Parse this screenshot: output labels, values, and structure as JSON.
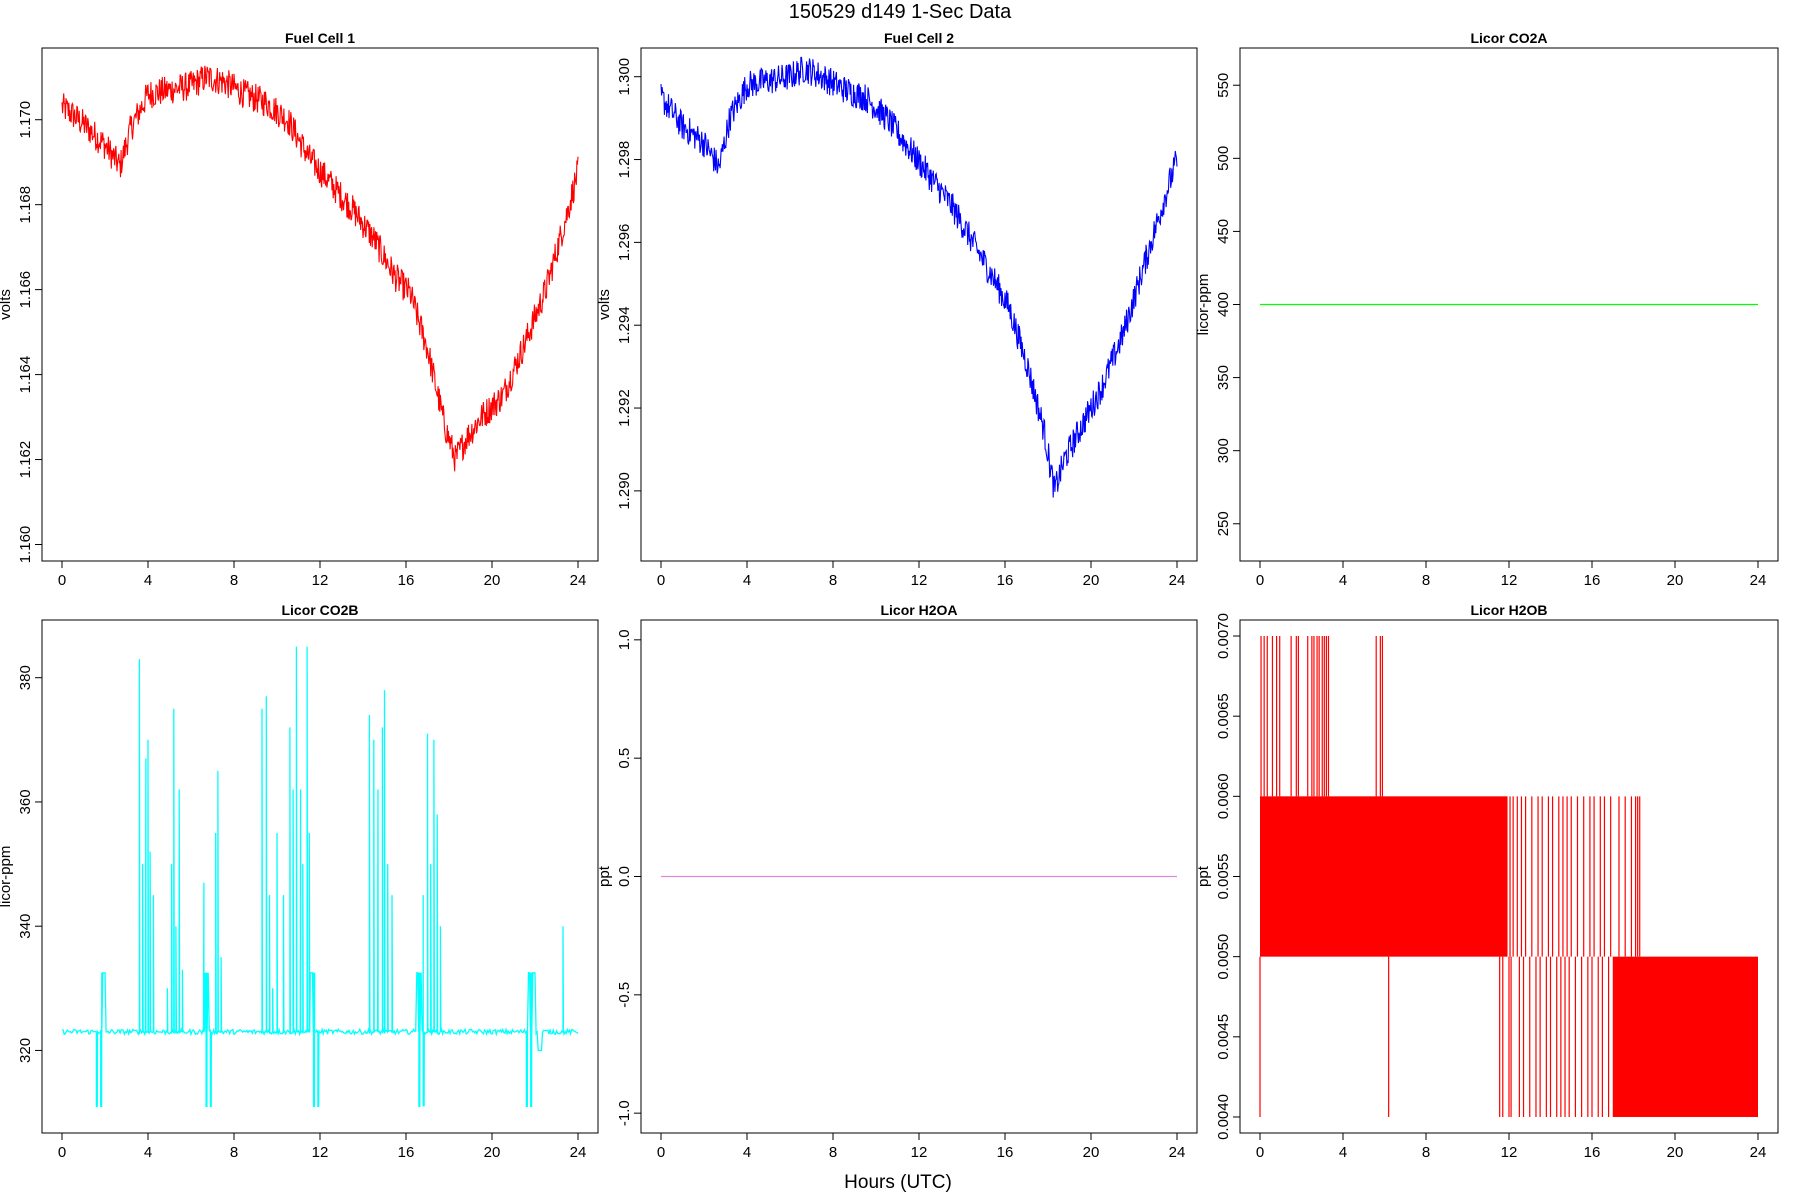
{
  "figure": {
    "title": "150529   d149   1-Sec Data",
    "xlabel": "Hours (UTC)"
  },
  "chart_data": [
    {
      "type": "line",
      "title": "Fuel Cell 1",
      "ylabel": "volts",
      "color": "#ff0000",
      "xlim": [
        0,
        24
      ],
      "ylim": [
        1.1598,
        1.1715
      ],
      "xticks": [
        0,
        4,
        8,
        12,
        16,
        20,
        24
      ],
      "yticks": [
        1.16,
        1.162,
        1.164,
        1.166,
        1.168,
        1.17
      ],
      "ytick_labels": [
        "1.160",
        "1.162",
        "1.164",
        "1.166",
        "1.168",
        "1.170"
      ],
      "noise": 0.00035,
      "x": [
        0,
        0.3,
        1.0,
        2.0,
        2.7,
        3.2,
        4.0,
        5.0,
        6.0,
        6.7,
        7.5,
        8.5,
        9.5,
        10.5,
        11.5,
        12.5,
        13.5,
        14.5,
        15.5,
        16.2,
        17.0,
        17.8,
        18.3,
        18.8,
        19.5,
        20.5,
        21.5,
        22.5,
        23.5,
        24.0
      ],
      "y": [
        1.1703,
        1.1702,
        1.1699,
        1.1694,
        1.1689,
        1.1698,
        1.1706,
        1.1707,
        1.1708,
        1.171,
        1.1709,
        1.1706,
        1.1704,
        1.17,
        1.1691,
        1.1685,
        1.1679,
        1.1672,
        1.1663,
        1.1659,
        1.1646,
        1.1628,
        1.162,
        1.1625,
        1.163,
        1.1635,
        1.1647,
        1.166,
        1.1678,
        1.1688
      ]
    },
    {
      "type": "line",
      "title": "Fuel Cell 2",
      "ylabel": "volts",
      "color": "#0000ff",
      "xlim": [
        0,
        24
      ],
      "ylim": [
        1.2885,
        1.3005
      ],
      "xticks": [
        0,
        4,
        8,
        12,
        16,
        20,
        24
      ],
      "yticks": [
        1.29,
        1.292,
        1.294,
        1.296,
        1.298,
        1.3
      ],
      "ytick_labels": [
        "1.290",
        "1.292",
        "1.294",
        "1.296",
        "1.298",
        "1.300"
      ],
      "noise": 0.00035,
      "x": [
        0,
        0.3,
        1.0,
        2.0,
        2.7,
        3.2,
        4.0,
        5.0,
        6.0,
        6.7,
        7.5,
        8.5,
        9.5,
        10.5,
        11.5,
        12.5,
        13.5,
        14.5,
        15.5,
        16.2,
        17.0,
        17.8,
        18.3,
        18.8,
        19.5,
        20.5,
        21.5,
        22.5,
        23.5,
        24.0
      ],
      "y": [
        1.2995,
        1.2993,
        1.2988,
        1.2984,
        1.2978,
        1.299,
        1.2998,
        1.2999,
        1.3,
        1.3002,
        1.3,
        1.2997,
        1.2995,
        1.299,
        1.2983,
        1.2976,
        1.2969,
        1.296,
        1.2951,
        1.2944,
        1.2931,
        1.2915,
        1.29,
        1.2908,
        1.2915,
        1.2925,
        1.2938,
        1.2955,
        1.2972,
        1.298
      ]
    },
    {
      "type": "line",
      "title": "Licor CO2A",
      "ylabel": "licor-ppm",
      "color": "#00ff00",
      "xlim": [
        0,
        24
      ],
      "ylim": [
        230,
        570
      ],
      "xticks": [
        0,
        4,
        8,
        12,
        16,
        20,
        24
      ],
      "yticks": [
        250,
        300,
        350,
        400,
        450,
        500,
        550
      ],
      "ytick_labels": [
        "250",
        "300",
        "350",
        "400",
        "450",
        "500",
        "550"
      ],
      "noise": 0,
      "x": [
        0,
        24
      ],
      "y": [
        400,
        400
      ]
    },
    {
      "type": "line",
      "title": "Licor CO2B",
      "ylabel": "licor-ppm",
      "color": "#00ffff",
      "xlim": [
        0,
        24
      ],
      "ylim": [
        308,
        388
      ],
      "xticks": [
        0,
        4,
        8,
        12,
        16,
        20,
        24
      ],
      "yticks": [
        320,
        340,
        360,
        380
      ],
      "ytick_labels": [
        "320",
        "340",
        "360",
        "380"
      ],
      "noise": 0,
      "baseline": 323,
      "spikes": [
        [
          3.6,
          383
        ],
        [
          3.75,
          350
        ],
        [
          3.9,
          367
        ],
        [
          4.0,
          370
        ],
        [
          4.1,
          352
        ],
        [
          4.25,
          345
        ],
        [
          4.9,
          330
        ],
        [
          5.1,
          350
        ],
        [
          5.2,
          375
        ],
        [
          5.3,
          340
        ],
        [
          5.45,
          362
        ],
        [
          5.6,
          333
        ],
        [
          6.6,
          347
        ],
        [
          7.15,
          355
        ],
        [
          7.25,
          365
        ],
        [
          7.4,
          335
        ],
        [
          9.3,
          375
        ],
        [
          9.5,
          377
        ],
        [
          9.65,
          345
        ],
        [
          9.8,
          330
        ],
        [
          10.0,
          355
        ],
        [
          10.3,
          345
        ],
        [
          10.6,
          372
        ],
        [
          10.75,
          362
        ],
        [
          10.9,
          385
        ],
        [
          11.1,
          362
        ],
        [
          11.2,
          350
        ],
        [
          11.4,
          385
        ],
        [
          11.5,
          355
        ],
        [
          14.3,
          374
        ],
        [
          14.5,
          370
        ],
        [
          14.7,
          362
        ],
        [
          14.9,
          372
        ],
        [
          15.0,
          378
        ],
        [
          15.15,
          350
        ],
        [
          15.35,
          345
        ],
        [
          16.8,
          345
        ],
        [
          17.0,
          371
        ],
        [
          17.15,
          350
        ],
        [
          17.3,
          370
        ],
        [
          17.45,
          358
        ],
        [
          17.6,
          340
        ],
        [
          23.3,
          340
        ]
      ],
      "dips": [
        [
          1.6,
          311
        ],
        [
          1.8,
          311
        ],
        [
          6.7,
          311
        ],
        [
          6.9,
          311
        ],
        [
          11.7,
          311
        ],
        [
          11.9,
          311
        ],
        [
          16.6,
          311
        ],
        [
          16.8,
          311
        ],
        [
          21.6,
          311
        ],
        [
          21.8,
          311
        ]
      ],
      "plateaus": [
        [
          1.8,
          2.0,
          332.5
        ],
        [
          6.6,
          6.8,
          332.5
        ],
        [
          11.55,
          11.75,
          332.5
        ],
        [
          16.5,
          16.7,
          332.5
        ],
        [
          21.7,
          22.0,
          332.5
        ],
        [
          22.1,
          22.3,
          320
        ]
      ]
    },
    {
      "type": "line",
      "title": "Licor H2OA",
      "ylabel": "ppt",
      "color": "#dd88dd",
      "xlim": [
        0,
        24
      ],
      "ylim": [
        -1.05,
        1.05
      ],
      "xticks": [
        0,
        4,
        8,
        12,
        16,
        20,
        24
      ],
      "yticks": [
        -1.0,
        -0.5,
        0.0,
        0.5,
        1.0
      ],
      "ytick_labels": [
        "-1.0",
        "-0.5",
        "0.0",
        "0.5",
        "1.0"
      ],
      "noise": 0,
      "x": [
        0,
        24
      ],
      "y": [
        0,
        0
      ]
    },
    {
      "type": "line",
      "title": "Licor H2OB",
      "ylabel": "ppt",
      "color": "#ff0000",
      "xlim": [
        0,
        24
      ],
      "ylim": [
        0.00395,
        0.00705
      ],
      "xticks": [
        0,
        4,
        8,
        12,
        16,
        20,
        24
      ],
      "yticks": [
        0.004,
        0.0045,
        0.005,
        0.0055,
        0.006,
        0.0065,
        0.007
      ],
      "ytick_labels": [
        "0.0040",
        "0.0045",
        "0.0050",
        "0.0055",
        "0.0060",
        "0.0065",
        "0.0070"
      ],
      "noise": 0,
      "bands": [
        {
          "x0": 0,
          "x1": 11.9,
          "y0": 0.005,
          "y1": 0.006
        },
        {
          "x0": 17.0,
          "x1": 24.0,
          "y0": 0.004,
          "y1": 0.005
        }
      ],
      "spikes_up": [
        0.05,
        0.2,
        0.35,
        0.6,
        0.8,
        0.95,
        1.5,
        1.75,
        1.85,
        2.3,
        2.5,
        2.6,
        2.75,
        2.85,
        3.0,
        3.1,
        3.2,
        3.3,
        5.6,
        5.8,
        5.9
      ],
      "spikes_down": [
        0.0,
        6.2,
        11.55,
        11.7,
        12.0,
        12.1,
        12.5,
        12.7,
        13.0,
        13.3,
        13.5,
        13.8,
        14.0,
        14.3,
        14.5,
        14.7,
        14.9,
        15.2,
        15.5,
        15.8,
        16.0,
        16.3,
        16.5,
        16.8
      ],
      "spikes_mid": [
        11.9,
        12.05,
        12.2,
        12.4,
        12.6,
        12.8,
        13.1,
        13.4,
        13.6,
        13.9,
        14.1,
        14.4,
        14.6,
        14.8,
        15.0,
        15.3,
        15.6,
        15.9,
        16.1,
        16.4,
        16.6,
        16.9,
        18.1
      ],
      "spikes_late": [
        17.3,
        17.6,
        17.9,
        18.2,
        18.3
      ]
    }
  ]
}
